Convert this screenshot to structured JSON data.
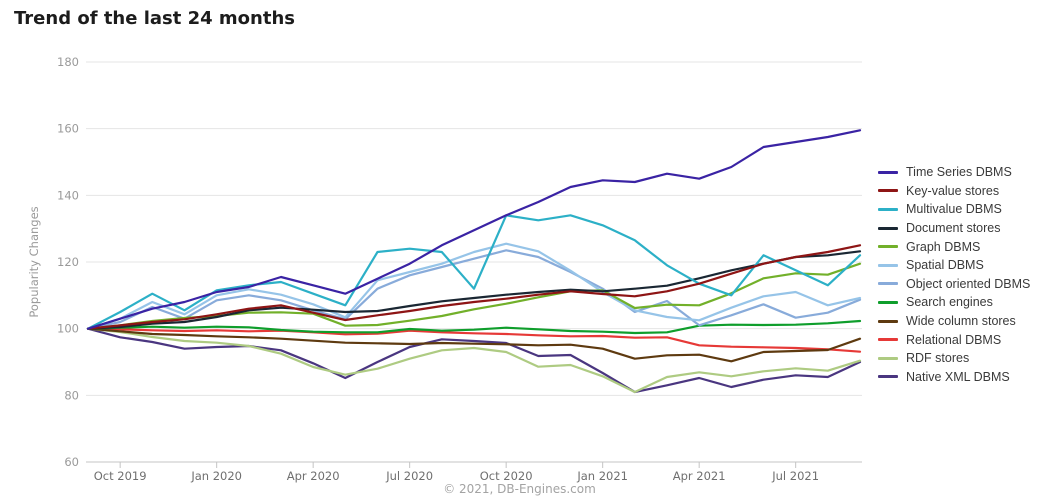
{
  "page": {
    "title": "Trend of the last 24 months",
    "footer": "© 2021, DB-Engines.com"
  },
  "colors": {
    "background": "#ffffff",
    "grid": "#e4e4e4",
    "axis": "#c4c4c4",
    "y_tick_label": "#9a9a9a",
    "x_tick_label": "#6f6f6f",
    "axis_title": "#9a9a9a",
    "title_text": "#1c1c1c",
    "legend_text": "#3a3a3a",
    "footer_text": "#a3a3a3"
  },
  "chart_data": {
    "type": "line",
    "title": "Trend of the last 24 months",
    "xlabel": "",
    "ylabel": "Popularity Changes",
    "ylim": [
      60,
      180
    ],
    "y_ticks": [
      180,
      160,
      140,
      120,
      100,
      80,
      60
    ],
    "grid": true,
    "legend_position": "right",
    "x": [
      "Sep 2019",
      "Oct 2019",
      "Nov 2019",
      "Dec 2019",
      "Jan 2020",
      "Feb 2020",
      "Mar 2020",
      "Apr 2020",
      "May 2020",
      "Jun 2020",
      "Jul 2020",
      "Aug 2020",
      "Sep 2020",
      "Oct 2020",
      "Nov 2020",
      "Dec 2020",
      "Jan 2021",
      "Feb 2021",
      "Mar 2021",
      "Apr 2021",
      "May 2021",
      "Jun 2021",
      "Jul 2021",
      "Aug 2021",
      "Sep 2021"
    ],
    "x_tick_indices": [
      1,
      4,
      7,
      10,
      13,
      16,
      19,
      22
    ],
    "x_tick_labels": [
      "Oct 2019",
      "Jan 2020",
      "Apr 2020",
      "Jul 2020",
      "Oct 2020",
      "Jan 2021",
      "Apr 2021",
      "Jul 2021"
    ],
    "series": [
      {
        "name": "Time Series DBMS",
        "color": "#3a23a4",
        "values": [
          100,
          103,
          106,
          108,
          111,
          112.5,
          115.5,
          113,
          110.5,
          115,
          119.5,
          125,
          129.5,
          134,
          138,
          142.5,
          144.5,
          144,
          146.5,
          145,
          148.5,
          154.5,
          156,
          157.5,
          159.5
        ]
      },
      {
        "name": "Key-value stores",
        "color": "#8e1515",
        "values": [
          100,
          101,
          102,
          102.8,
          104.3,
          106,
          107,
          104.8,
          102.6,
          104,
          105.3,
          106.8,
          108,
          109,
          110.2,
          111.2,
          110.4,
          109.7,
          111.2,
          113.5,
          116.5,
          119.5,
          121.5,
          123,
          125
        ]
      },
      {
        "name": "Multivalue DBMS",
        "color": "#2cb0c7",
        "values": [
          100,
          105,
          110.5,
          105.5,
          111.5,
          113,
          114,
          110.5,
          107,
          123,
          124,
          123,
          112,
          134,
          132.5,
          134,
          131,
          126.5,
          119,
          113.5,
          110,
          122,
          117.5,
          113,
          122
        ]
      },
      {
        "name": "Document stores",
        "color": "#1a2733",
        "values": [
          100,
          100.5,
          101.5,
          102,
          103.5,
          105.5,
          106.3,
          105.7,
          105,
          105.3,
          106.8,
          108.2,
          109.2,
          110.2,
          111,
          111.7,
          111.2,
          112,
          112.9,
          115.1,
          117.5,
          119.5,
          121.5,
          122,
          123.2
        ]
      },
      {
        "name": "Graph DBMS",
        "color": "#72b02a",
        "values": [
          100,
          101,
          102.3,
          103.2,
          103.8,
          104.8,
          104.9,
          104.5,
          100.9,
          101.1,
          102.4,
          103.8,
          105.8,
          107.5,
          109.4,
          111.2,
          111.5,
          106.2,
          107.2,
          107,
          110.6,
          115.1,
          116.6,
          116.2,
          119.5
        ]
      },
      {
        "name": "Spatial DBMS",
        "color": "#96c4e8",
        "values": [
          100,
          103,
          108,
          104.3,
          110,
          111.8,
          110.2,
          107.3,
          103.4,
          114.5,
          117,
          119.5,
          123,
          125.5,
          123.2,
          117.4,
          111,
          105.5,
          103.5,
          102.5,
          106.3,
          109.7,
          111,
          107,
          109.2
        ]
      },
      {
        "name": "Object oriented DBMS",
        "color": "#88abda",
        "values": [
          100,
          102,
          106.5,
          103,
          108.5,
          110,
          108.5,
          105.5,
          102.8,
          112,
          116,
          118.5,
          121,
          123.5,
          121.5,
          117,
          112,
          105,
          108.3,
          101,
          104,
          107.3,
          103.3,
          104.8,
          108.7
        ]
      },
      {
        "name": "Search engines",
        "color": "#0f9e2c",
        "values": [
          100,
          100.3,
          100.6,
          100.3,
          100.6,
          100.4,
          99.6,
          99.1,
          98.9,
          98.9,
          99.9,
          99.4,
          99.7,
          100.3,
          99.8,
          99.3,
          99.1,
          98.7,
          98.9,
          100.9,
          101.2,
          101.1,
          101.2,
          101.6,
          102.3
        ]
      },
      {
        "name": "Wide column stores",
        "color": "#5e3a10",
        "values": [
          100,
          99.2,
          98.4,
          98.1,
          97.7,
          97.4,
          97,
          96.4,
          95.8,
          95.6,
          95.4,
          95.7,
          95.5,
          95.3,
          95,
          95.2,
          94,
          91,
          92,
          92.2,
          90.2,
          93,
          93.3,
          93.6,
          97
        ]
      },
      {
        "name": "Relational DBMS",
        "color": "#e63937",
        "values": [
          100,
          99.8,
          99.5,
          99.3,
          99.5,
          99.2,
          99.4,
          98.9,
          98.3,
          98.5,
          99.4,
          98.9,
          98.6,
          98.4,
          98,
          97.7,
          97.8,
          97.3,
          97.4,
          95,
          94.6,
          94.4,
          94.2,
          93.8,
          93.1
        ]
      },
      {
        "name": "RDF stores",
        "color": "#aecb82",
        "values": [
          100,
          99,
          97.5,
          96.3,
          95.8,
          94.8,
          92.5,
          88.5,
          86.2,
          88,
          91,
          93.5,
          94.2,
          93,
          88.6,
          89.1,
          85.7,
          81,
          85.5,
          86.9,
          85.7,
          87.2,
          88.1,
          87.4,
          90.4
        ]
      },
      {
        "name": "Native XML DBMS",
        "color": "#4a3680",
        "values": [
          100,
          97.4,
          96,
          94,
          94.5,
          94.8,
          93.5,
          89.6,
          85.2,
          90,
          94.5,
          96.8,
          96.3,
          95.7,
          91.8,
          92.1,
          86.7,
          81,
          83,
          85.2,
          82.5,
          84.7,
          86,
          85.5,
          90
        ]
      }
    ]
  }
}
